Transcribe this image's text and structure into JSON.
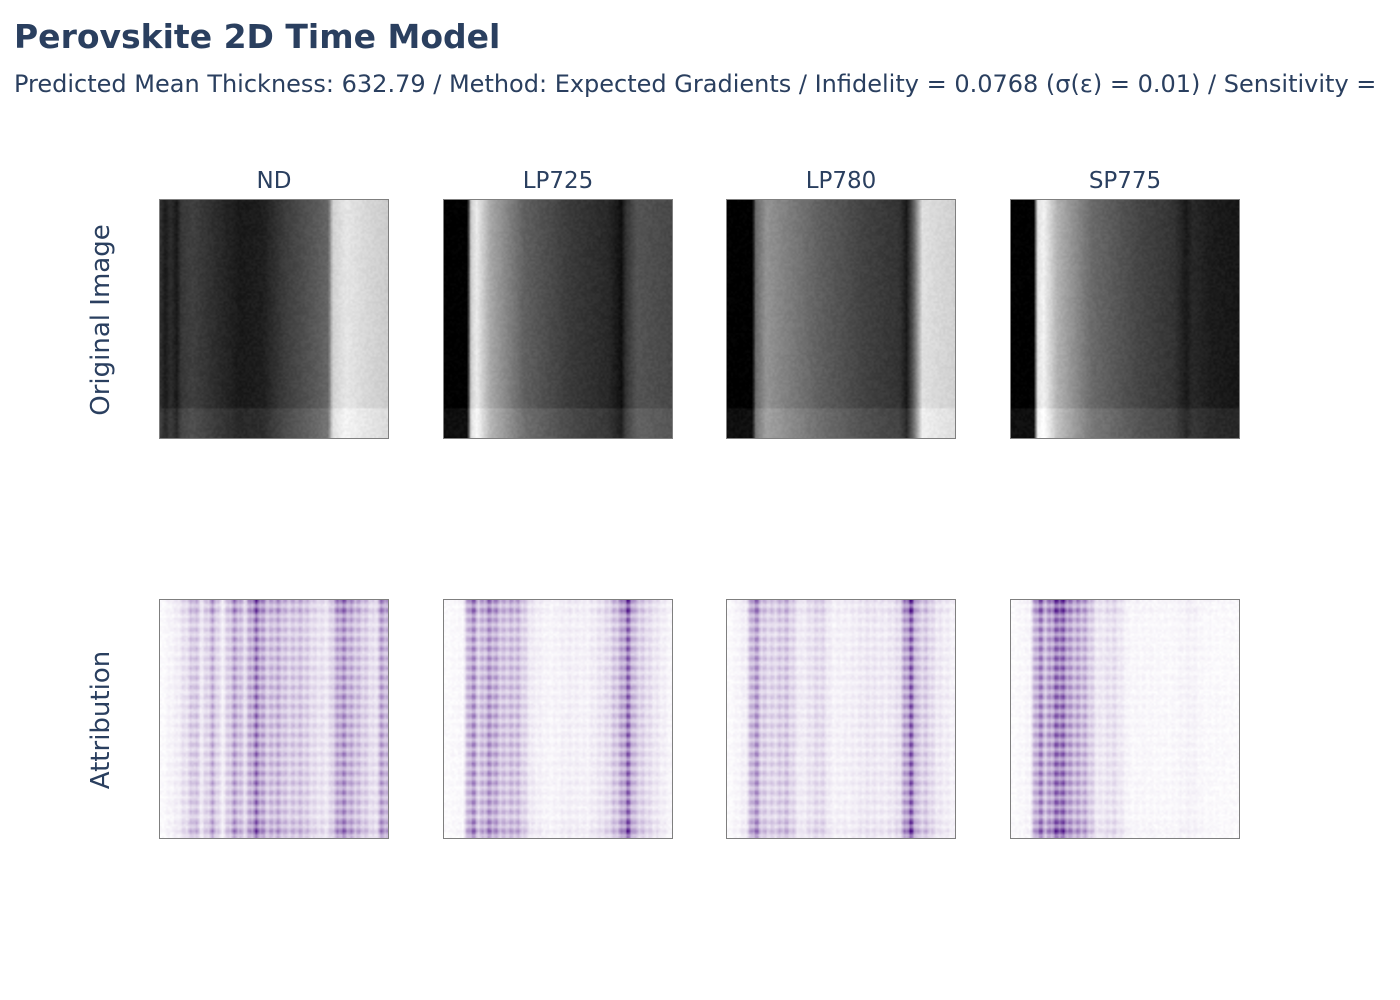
{
  "title": "Perovskite 2D Time Model",
  "subtitle": "Predicted Mean Thickness: 632.79 / Method: Expected Gradients / Infidelity = 0.0768 (σ(ε) = 0.01) / Sensitivity =",
  "chart_data": {
    "type": "heatmap",
    "title": "Perovskite 2D Time Model",
    "row_labels": [
      "Original Image",
      "Attribution"
    ],
    "columns": [
      "ND",
      "LP725",
      "LP780",
      "SP775"
    ],
    "colorscales": {
      "Original Image": [
        "#000000",
        "#ffffff"
      ],
      "Attribution": [
        "#ffffff",
        "#3f007d"
      ]
    },
    "metrics": {
      "predicted_mean_thickness": 632.79,
      "method": "Expected Gradients",
      "infidelity": 0.0768,
      "sigma_epsilon": 0.01
    },
    "column_profiles": {
      "original": {
        "ND": [
          [
            0,
            0.18
          ],
          [
            0.02,
            0.1
          ],
          [
            0.04,
            0.18
          ],
          [
            0.07,
            0.1
          ],
          [
            0.09,
            0.22
          ],
          [
            0.14,
            0.25
          ],
          [
            0.25,
            0.17
          ],
          [
            0.35,
            0.1
          ],
          [
            0.45,
            0.12
          ],
          [
            0.55,
            0.24
          ],
          [
            0.65,
            0.32
          ],
          [
            0.74,
            0.4
          ],
          [
            0.76,
            0.82
          ],
          [
            0.82,
            0.9
          ],
          [
            0.9,
            0.85
          ],
          [
            1.0,
            0.8
          ]
        ],
        "LP725": [
          [
            0,
            0.0
          ],
          [
            0.1,
            0.0
          ],
          [
            0.115,
            0.82
          ],
          [
            0.14,
            0.92
          ],
          [
            0.2,
            0.66
          ],
          [
            0.35,
            0.38
          ],
          [
            0.55,
            0.23
          ],
          [
            0.72,
            0.16
          ],
          [
            0.76,
            0.1
          ],
          [
            0.78,
            0.06
          ],
          [
            0.8,
            0.2
          ],
          [
            0.85,
            0.33
          ],
          [
            1.0,
            0.28
          ]
        ],
        "LP780": [
          [
            0,
            0.0
          ],
          [
            0.11,
            0.0
          ],
          [
            0.12,
            0.4
          ],
          [
            0.17,
            0.58
          ],
          [
            0.4,
            0.38
          ],
          [
            0.6,
            0.26
          ],
          [
            0.76,
            0.2
          ],
          [
            0.79,
            0.1
          ],
          [
            0.82,
            0.35
          ],
          [
            0.86,
            0.88
          ],
          [
            0.92,
            0.85
          ],
          [
            1.0,
            0.82
          ]
        ],
        "SP775": [
          [
            0,
            0.0
          ],
          [
            0.1,
            0.0
          ],
          [
            0.11,
            0.88
          ],
          [
            0.14,
            0.95
          ],
          [
            0.2,
            0.7
          ],
          [
            0.35,
            0.42
          ],
          [
            0.55,
            0.28
          ],
          [
            0.72,
            0.2
          ],
          [
            0.77,
            0.1
          ],
          [
            0.8,
            0.16
          ],
          [
            0.88,
            0.11
          ],
          [
            1.0,
            0.09
          ]
        ]
      },
      "attribution": {
        "ND": [
          [
            0,
            0.02
          ],
          [
            0.07,
            0.1
          ],
          [
            0.12,
            0.22
          ],
          [
            0.15,
            0.4
          ],
          [
            0.18,
            0.12
          ],
          [
            0.23,
            0.45
          ],
          [
            0.27,
            0.08
          ],
          [
            0.33,
            0.55
          ],
          [
            0.37,
            0.2
          ],
          [
            0.42,
            0.75
          ],
          [
            0.47,
            0.35
          ],
          [
            0.52,
            0.45
          ],
          [
            0.56,
            0.3
          ],
          [
            0.62,
            0.35
          ],
          [
            0.68,
            0.2
          ],
          [
            0.74,
            0.15
          ],
          [
            0.8,
            0.65
          ],
          [
            0.84,
            0.45
          ],
          [
            0.9,
            0.3
          ],
          [
            0.95,
            0.15
          ],
          [
            0.98,
            0.6
          ],
          [
            1.0,
            0.4
          ]
        ],
        "LP725": [
          [
            0,
            0.02
          ],
          [
            0.08,
            0.05
          ],
          [
            0.12,
            0.7
          ],
          [
            0.15,
            0.3
          ],
          [
            0.2,
            0.6
          ],
          [
            0.25,
            0.35
          ],
          [
            0.32,
            0.4
          ],
          [
            0.38,
            0.12
          ],
          [
            0.46,
            0.06
          ],
          [
            0.55,
            0.1
          ],
          [
            0.63,
            0.08
          ],
          [
            0.72,
            0.2
          ],
          [
            0.78,
            0.45
          ],
          [
            0.81,
            0.85
          ],
          [
            0.84,
            0.35
          ],
          [
            0.88,
            0.25
          ],
          [
            0.93,
            0.15
          ],
          [
            1.0,
            0.05
          ]
        ],
        "LP780": [
          [
            0,
            0.02
          ],
          [
            0.08,
            0.1
          ],
          [
            0.12,
            0.65
          ],
          [
            0.15,
            0.3
          ],
          [
            0.2,
            0.25
          ],
          [
            0.26,
            0.35
          ],
          [
            0.32,
            0.1
          ],
          [
            0.41,
            0.25
          ],
          [
            0.46,
            0.08
          ],
          [
            0.55,
            0.1
          ],
          [
            0.62,
            0.15
          ],
          [
            0.7,
            0.12
          ],
          [
            0.76,
            0.2
          ],
          [
            0.81,
            0.9
          ],
          [
            0.84,
            0.3
          ],
          [
            0.88,
            0.3
          ],
          [
            0.92,
            0.15
          ],
          [
            1.0,
            0.08
          ]
        ],
        "SP775": [
          [
            0,
            0.02
          ],
          [
            0.08,
            0.06
          ],
          [
            0.12,
            0.75
          ],
          [
            0.15,
            0.4
          ],
          [
            0.21,
            0.9
          ],
          [
            0.26,
            0.5
          ],
          [
            0.32,
            0.45
          ],
          [
            0.38,
            0.12
          ],
          [
            0.45,
            0.2
          ],
          [
            0.52,
            0.05
          ],
          [
            0.6,
            0.05
          ],
          [
            0.7,
            0.04
          ],
          [
            0.79,
            0.08
          ],
          [
            0.85,
            0.04
          ],
          [
            1.0,
            0.03
          ]
        ]
      }
    }
  }
}
